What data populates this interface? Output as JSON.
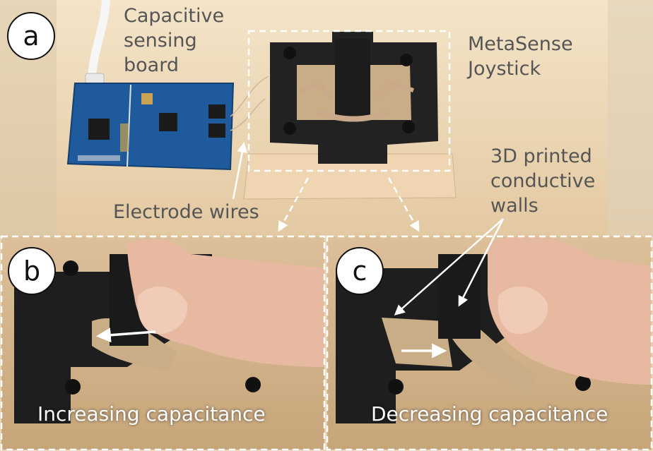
{
  "panels": {
    "a": {
      "label": "a"
    },
    "b": {
      "label": "b",
      "caption": "Increasing capacitance"
    },
    "c": {
      "label": "c",
      "caption": "Decreasing capacitance"
    }
  },
  "annotations": {
    "sensing_board": [
      "Capacitive",
      "sensing",
      "board"
    ],
    "joystick": [
      "MetaSense",
      "Joystick"
    ],
    "electrode_wires": "Electrode wires",
    "conductive_walls": [
      "3D printed",
      "conductive",
      "walls"
    ]
  },
  "colors": {
    "wood": "#e8d4b4",
    "pcb_blue": "#1f5a9c",
    "print_black": "#202020",
    "annotation_text": "#555555",
    "arrow": "#ffffff"
  }
}
